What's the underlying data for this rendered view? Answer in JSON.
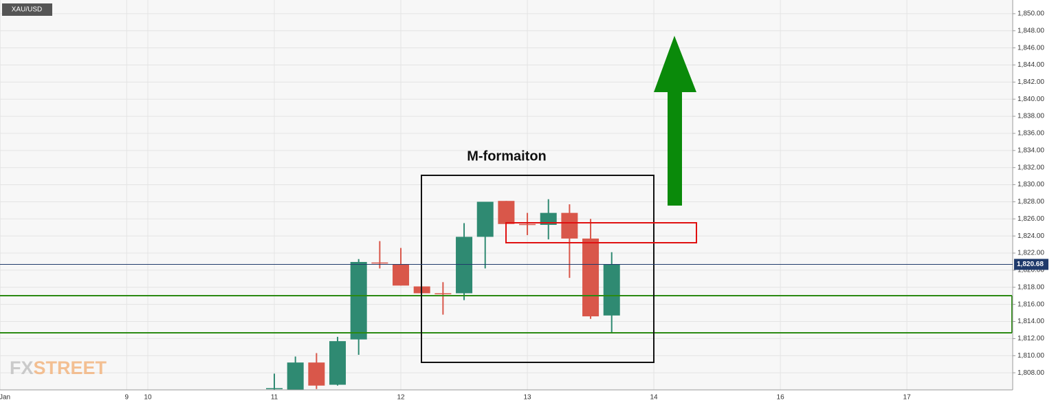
{
  "chart_data": {
    "type": "candlestick",
    "title": "XAU/USD",
    "annotation": "M-formaiton",
    "watermark": [
      "FX",
      "STREET"
    ],
    "categories": [
      "Jan",
      null,
      null,
      null,
      null,
      null,
      "9",
      "10",
      null,
      null,
      null,
      null,
      null,
      "11",
      null,
      null,
      null,
      null,
      null,
      "12",
      null,
      null,
      null,
      null,
      null,
      "13",
      null,
      null,
      null,
      null,
      null,
      "14",
      null,
      null,
      null,
      null,
      null,
      "16",
      null,
      null,
      null,
      null,
      null,
      "17",
      null,
      null,
      null,
      null
    ],
    "open": [
      null,
      null,
      null,
      null,
      null,
      null,
      null,
      null,
      null,
      null,
      null,
      null,
      null,
      1806.1,
      1806.0,
      1809.2,
      1806.6,
      1811.9,
      1820.9,
      1820.7,
      1818.1,
      1817.3,
      1817.3,
      1823.9,
      1828.1,
      1825.4,
      1825.3,
      1826.7,
      1823.7,
      1814.7,
      null,
      null,
      null,
      null,
      null,
      null,
      null,
      null,
      null,
      null,
      null,
      null,
      null,
      null,
      null,
      null,
      null,
      null
    ],
    "high": [
      null,
      null,
      null,
      null,
      null,
      null,
      null,
      null,
      null,
      null,
      null,
      null,
      null,
      1807.9,
      1809.9,
      1810.3,
      1812.2,
      1821.3,
      1823.4,
      1822.6,
      1818.1,
      1818.6,
      1825.5,
      1828.0,
      1828.1,
      1826.7,
      1828.3,
      1827.7,
      1826.0,
      1822.1,
      null,
      null,
      null,
      null,
      null,
      null,
      null,
      null,
      null,
      null,
      null,
      null,
      null,
      null,
      null,
      null,
      null,
      null
    ],
    "low": [
      null,
      null,
      null,
      null,
      null,
      null,
      null,
      null,
      null,
      null,
      null,
      null,
      null,
      1806.0,
      1806.0,
      1806.1,
      1806.5,
      1810.1,
      1820.2,
      1818.2,
      1817.3,
      1814.8,
      1816.5,
      1820.2,
      1825.4,
      1824.1,
      1823.6,
      1819.1,
      1814.3,
      1812.6,
      null,
      null,
      null,
      null,
      null,
      null,
      null,
      null,
      null,
      null,
      null,
      null,
      null,
      null,
      null,
      null,
      null,
      null
    ],
    "close": [
      null,
      null,
      null,
      null,
      null,
      null,
      null,
      null,
      null,
      null,
      null,
      null,
      null,
      1806.2,
      1809.2,
      1806.5,
      1811.7,
      1820.96,
      1820.8,
      1818.2,
      1817.3,
      1817.2,
      1823.9,
      1828.0,
      1825.4,
      1825.3,
      1826.7,
      1823.7,
      1814.6,
      1820.68,
      null,
      null,
      null,
      null,
      null,
      null,
      null,
      null,
      null,
      null,
      null,
      null,
      null,
      null,
      null,
      null,
      null,
      null
    ],
    "up_color": "#2f8a72",
    "down_color": "#d9574a",
    "last_price": {
      "value": 1820.68,
      "label": "1,820.68"
    },
    "ylim": [
      1806.0,
      1851.6
    ],
    "yticks": [
      {
        "value": 1808,
        "label": "1,808.00"
      },
      {
        "value": 1810,
        "label": "1,810.00"
      },
      {
        "value": 1812,
        "label": "1,812.00"
      },
      {
        "value": 1814,
        "label": "1,814.00"
      },
      {
        "value": 1816,
        "label": "1,816.00"
      },
      {
        "value": 1818,
        "label": "1,818.00"
      },
      {
        "value": 1820,
        "label": "1,820.00"
      },
      {
        "value": 1822,
        "label": "1,822.00"
      },
      {
        "value": 1824,
        "label": "1,824.00"
      },
      {
        "value": 1826,
        "label": "1,826.00"
      },
      {
        "value": 1828,
        "label": "1,828.00"
      },
      {
        "value": 1830,
        "label": "1,830.00"
      },
      {
        "value": 1832,
        "label": "1,832.00"
      },
      {
        "value": 1834,
        "label": "1,834.00"
      },
      {
        "value": 1836,
        "label": "1,836.00"
      },
      {
        "value": 1838,
        "label": "1,838.00"
      },
      {
        "value": 1840,
        "label": "1,840.00"
      },
      {
        "value": 1842,
        "label": "1,842.00"
      },
      {
        "value": 1844,
        "label": "1,844.00"
      },
      {
        "value": 1846,
        "label": "1,846.00"
      },
      {
        "value": 1848,
        "label": "1,848.00"
      },
      {
        "value": 1850,
        "label": "1,850.00"
      }
    ],
    "grid": true
  }
}
